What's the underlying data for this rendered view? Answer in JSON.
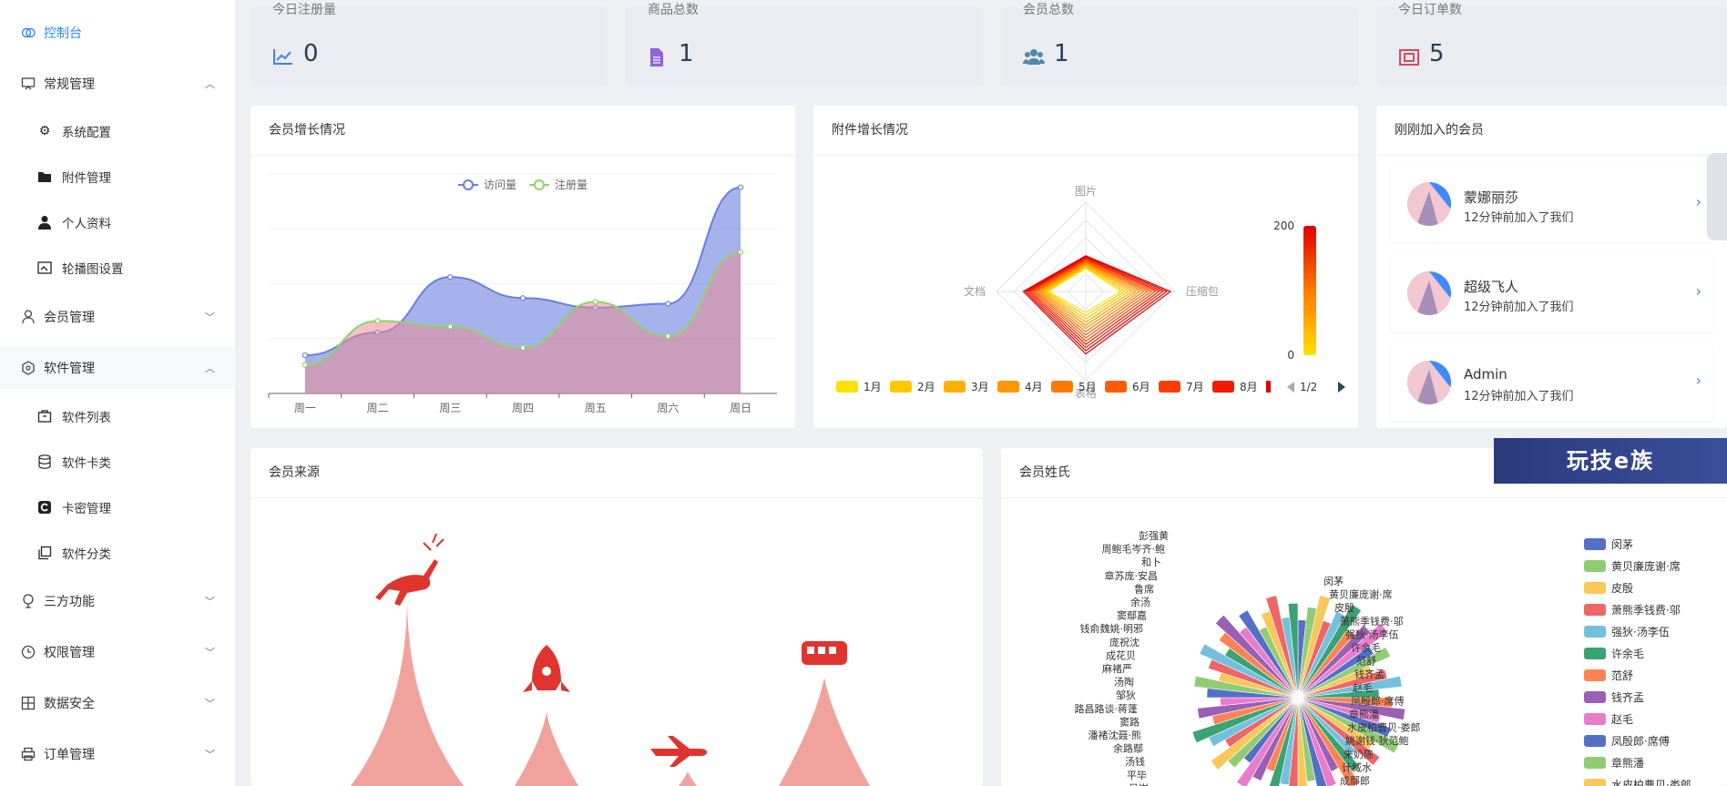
{
  "sidebar": {
    "items": [
      {
        "label": "控制台",
        "icon": "dashboard-icon"
      },
      {
        "label": "常规管理",
        "icon": "monitor-icon"
      },
      {
        "label": "系统配置",
        "icon": "gear-icon"
      },
      {
        "label": "附件管理",
        "icon": "folder-icon"
      },
      {
        "label": "个人资料",
        "icon": "user-icon"
      },
      {
        "label": "轮播图设置",
        "icon": "image-icon"
      },
      {
        "label": "会员管理",
        "icon": "user-outline-icon"
      },
      {
        "label": "软件管理",
        "icon": "cube-icon"
      },
      {
        "label": "软件列表",
        "icon": "package-icon"
      },
      {
        "label": "软件卡类",
        "icon": "database-icon"
      },
      {
        "label": "卡密管理",
        "icon": "card-icon"
      },
      {
        "label": "软件分类",
        "icon": "copy-icon"
      },
      {
        "label": "三方功能",
        "icon": "plugin-icon"
      },
      {
        "label": "权限管理",
        "icon": "clock-icon"
      },
      {
        "label": "数据安全",
        "icon": "grid-icon"
      },
      {
        "label": "订单管理",
        "icon": "printer-icon"
      }
    ]
  },
  "stats": [
    {
      "title": "今日注册量",
      "value": "0"
    },
    {
      "title": "商品总数",
      "value": "1"
    },
    {
      "title": "会员总数",
      "value": "1"
    },
    {
      "title": "今日订单数",
      "value": "5"
    }
  ],
  "cards": {
    "growth_title": "会员增长情况",
    "attach_title": "附件增长情况",
    "new_members_title": "刚刚加入的会员",
    "source_title": "会员来源",
    "surname_title": "会员姓氏"
  },
  "members": [
    {
      "name": "蒙娜丽莎",
      "sub": "12分钟前加入了我们"
    },
    {
      "name": "超级飞人",
      "sub": "12分钟前加入了我们"
    },
    {
      "name": "Admin",
      "sub": "12分钟前加入了我们"
    }
  ],
  "banner": "玩技e族",
  "colors": {
    "accent": "#2d8cf0",
    "visit": "#6a7fe0",
    "register": "#8fd36a"
  },
  "chart_data": [
    {
      "type": "area",
      "categories": [
        "周一",
        "周二",
        "周三",
        "周四",
        "周五",
        "周六",
        "周日"
      ],
      "series": [
        {
          "name": "访问量",
          "values": [
            120,
            132,
            161,
            150,
            145,
            147,
            208
          ]
        },
        {
          "name": "注册量",
          "values": [
            115,
            138,
            135,
            124,
            148,
            130,
            174
          ]
        }
      ],
      "ylim": [
        100,
        215
      ]
    },
    {
      "type": "radar",
      "indicators": [
        "图片",
        "压缩包",
        "表格",
        "文档"
      ],
      "legend": [
        "1月",
        "2月",
        "3月",
        "4月",
        "5月",
        "6月",
        "7月",
        "8月"
      ],
      "legend_page": "1/2",
      "visual_map": {
        "max": "200",
        "min": "0"
      }
    },
    {
      "type": "pie",
      "legend": [
        "闵茅",
        "黄贝廉庞谢·席",
        "皮殷",
        "萧熊季钱费·邬",
        "强狄·汤李伍",
        "许余毛",
        "范舒",
        "钱齐孟",
        "赵毛",
        "凤殷郎·席傅",
        "章熊潘",
        "水皮柏曹贝·娄郎"
      ],
      "labels": [
        "彭强黄",
        "周鲍毛岑齐·鲍",
        "和卜",
        "章苏庞·安昌",
        "鲁席",
        "余汤",
        "窦鄢嘉",
        "钱俞魏姚·明邪",
        "庞祝沈",
        "成花贝",
        "麻褚严",
        "汤陶",
        "邹狄",
        "路昌路谈·蒋蓬",
        "窦路",
        "潘褚沈聂·熊",
        "余路鄢",
        "汤钱",
        "平毕",
        "吴岑",
        "闵茅",
        "黄贝廉庞谢·席",
        "皮殷",
        "萧熊季钱费·邬",
        "强狄·汤李伍",
        "许余毛",
        "范舒",
        "钱齐孟",
        "赵毛",
        "凤殷郎·席傅",
        "章熊潘",
        "水皮柏曹贝·娄郎",
        "姚谢钱·狄范鲍",
        "朱奶陈",
        "计臧水",
        "成鄢郎"
      ]
    }
  ]
}
